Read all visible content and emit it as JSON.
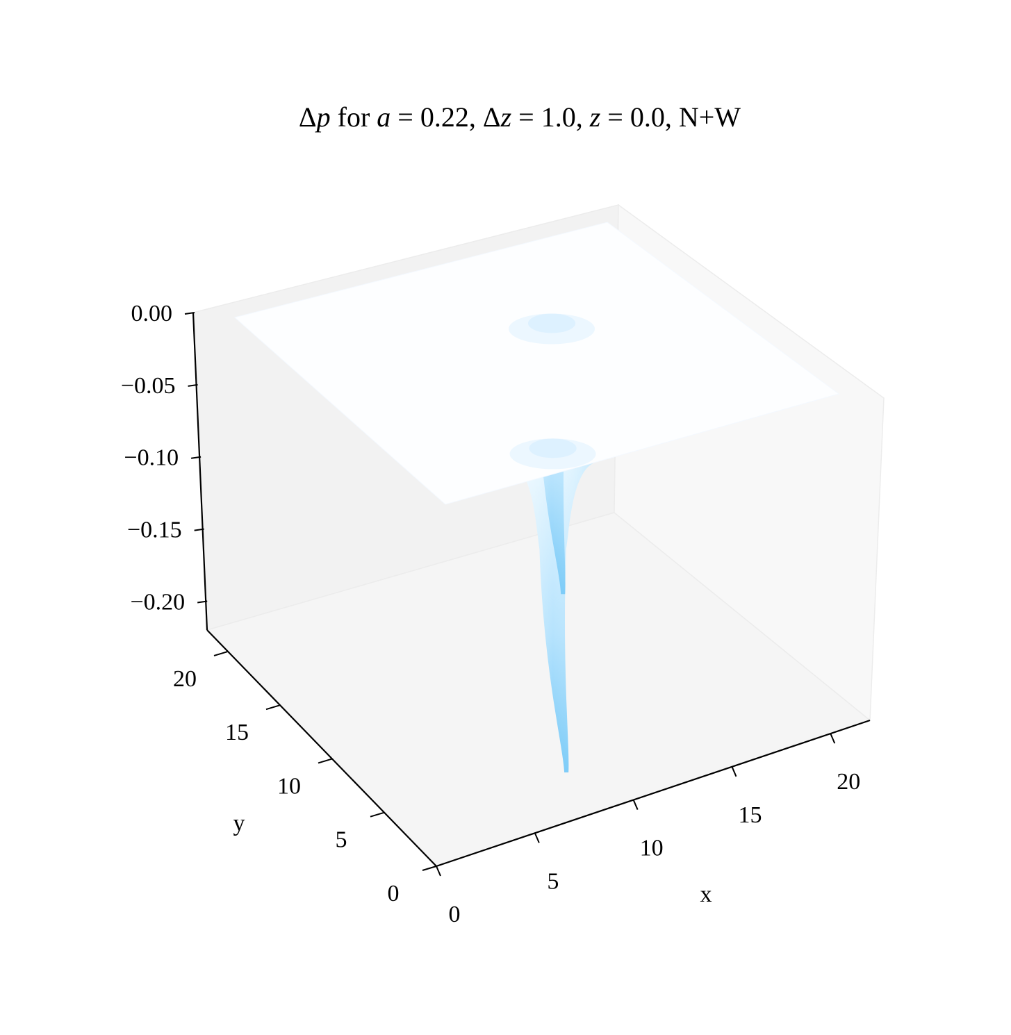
{
  "chart_data": {
    "type": "surface3d",
    "title": "Δp for a = 0.22, Δz = 1.0, z = 0.0, N+W",
    "title_parts": {
      "delta_p_1": "Δ",
      "delta_p_2": "p",
      "for": " for ",
      "a": "a",
      "a_val": " = 0.22, Δ",
      "dz": "z",
      "dz_val": " = 1.0, ",
      "z": "z",
      "z_val": " = 0.0, N+W"
    },
    "xlabel": "x",
    "ylabel": "y",
    "xlim": [
      0,
      22
    ],
    "ylim": [
      0,
      22
    ],
    "zlim": [
      -0.22,
      0.0
    ],
    "x_ticks": [
      {
        "value": 0,
        "label": "0"
      },
      {
        "value": 5,
        "label": "5"
      },
      {
        "value": 10,
        "label": "10"
      },
      {
        "value": 15,
        "label": "15"
      },
      {
        "value": 20,
        "label": "20"
      }
    ],
    "y_ticks": [
      {
        "value": 0,
        "label": "0"
      },
      {
        "value": 5,
        "label": "5"
      },
      {
        "value": 10,
        "label": "10"
      },
      {
        "value": 15,
        "label": "15"
      },
      {
        "value": 20,
        "label": "20"
      }
    ],
    "z_ticks": [
      {
        "value": 0.0,
        "label": "0.00"
      },
      {
        "value": -0.05,
        "label": "−0.05"
      },
      {
        "value": -0.1,
        "label": "−0.10"
      },
      {
        "value": -0.15,
        "label": "−0.15"
      },
      {
        "value": -0.2,
        "label": "−0.20"
      }
    ],
    "surface_extent": {
      "x": [
        0,
        21
      ],
      "y": [
        0,
        21
      ]
    },
    "wells": [
      {
        "x": 8.2,
        "y": 3.0,
        "depth": -0.215
      },
      {
        "x": 12.8,
        "y": 11.8,
        "depth": -0.178
      }
    ],
    "colormap": {
      "surface": "#fbfdff",
      "mid": "#cfeeff",
      "deep": "#74c8f7"
    },
    "grid": false
  }
}
